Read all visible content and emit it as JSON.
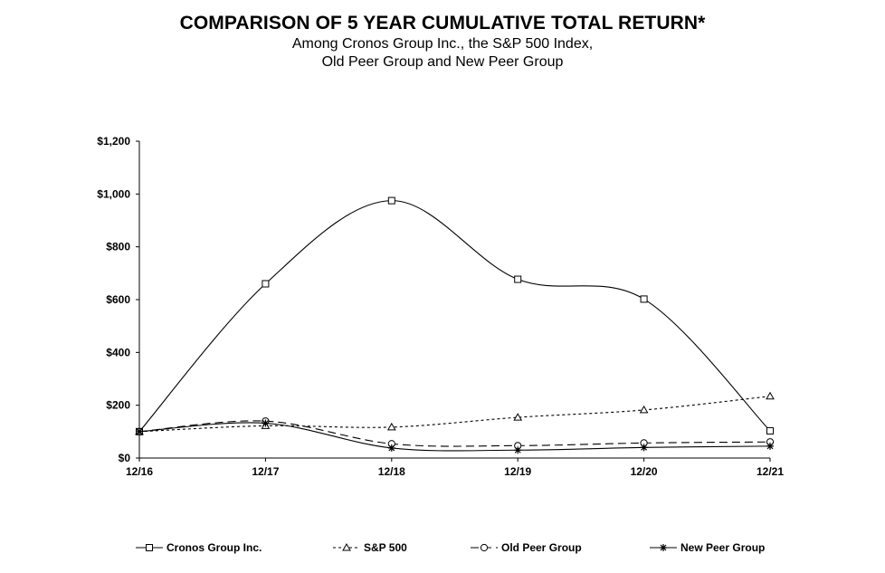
{
  "chart_data": {
    "type": "line",
    "title": "COMPARISON OF 5 YEAR CUMULATIVE TOTAL RETURN*",
    "subtitle_lines": [
      "Among Cronos Group Inc., the S&P 500 Index,",
      "Old Peer Group and New Peer Group"
    ],
    "xlabel": "",
    "ylabel": "",
    "categories": [
      "12/16",
      "12/17",
      "12/18",
      "12/19",
      "12/20",
      "12/21"
    ],
    "ylim": [
      0,
      1200
    ],
    "yticks": [
      0,
      200,
      400,
      600,
      800,
      1000,
      1200
    ],
    "ytick_labels": [
      "$0",
      "$200",
      "$400",
      "$600",
      "$800",
      "$1,000",
      "$1,200"
    ],
    "grid": false,
    "legend_position": "bottom",
    "series": [
      {
        "name": "Cronos Group Inc.",
        "marker": "square",
        "dash": "solid",
        "values": [
          100,
          660,
          975,
          677,
          602,
          103
        ]
      },
      {
        "name": "S&P 500",
        "marker": "triangle",
        "dash": "dotted",
        "values": [
          100,
          122,
          117,
          154,
          182,
          234
        ]
      },
      {
        "name": "Old Peer Group",
        "marker": "circle",
        "dash": "dashed",
        "values": [
          100,
          140,
          54,
          47,
          57,
          61
        ]
      },
      {
        "name": "New Peer Group",
        "marker": "star",
        "dash": "solid",
        "values": [
          100,
          132,
          38,
          30,
          40,
          45
        ]
      }
    ]
  }
}
